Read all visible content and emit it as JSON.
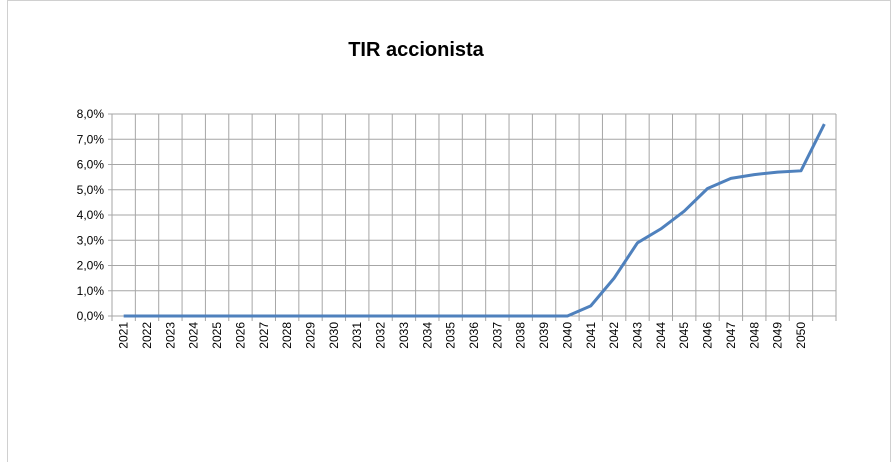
{
  "chart_data": {
    "type": "line",
    "title": "TIR accionista",
    "categories": [
      "2021",
      "2022",
      "2023",
      "2024",
      "2025",
      "2026",
      "2027",
      "2028",
      "2029",
      "2030",
      "2031",
      "2032",
      "2033",
      "2034",
      "2035",
      "2036",
      "2037",
      "2038",
      "2039",
      "2040",
      "2041",
      "2042",
      "2043",
      "2044",
      "2045",
      "2046",
      "2047",
      "2048",
      "2049",
      "2050",
      null
    ],
    "series": [
      {
        "color": "#4f81bd",
        "values": [
          0,
          0,
          0,
          0,
          0,
          0,
          0,
          0,
          0,
          0,
          0,
          0,
          0,
          0,
          0,
          0,
          0,
          0,
          0,
          0,
          0.4,
          1.5,
          2.9,
          3.45,
          4.15,
          5.05,
          5.45,
          5.6,
          5.7,
          5.75,
          7.6
        ]
      }
    ],
    "ylim": [
      0,
      8
    ],
    "yticks": [
      {
        "value": 0,
        "label": "0,0%"
      },
      {
        "value": 1,
        "label": "1,0%"
      },
      {
        "value": 2,
        "label": "2,0%"
      },
      {
        "value": 3,
        "label": "3,0%"
      },
      {
        "value": 4,
        "label": "4,0%"
      },
      {
        "value": 5,
        "label": "5,0%"
      },
      {
        "value": 6,
        "label": "6,0%"
      },
      {
        "value": 7,
        "label": "7,0%"
      },
      {
        "value": 8,
        "label": "8,0%"
      }
    ],
    "grid": true
  }
}
